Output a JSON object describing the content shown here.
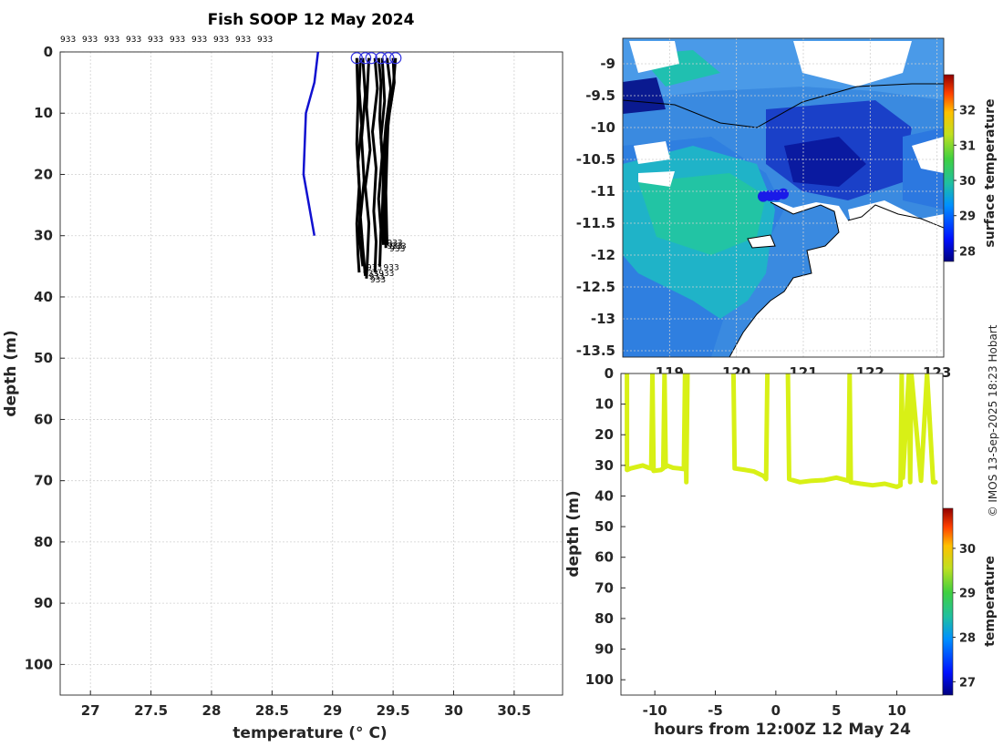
{
  "chart_data": [
    {
      "type": "line",
      "name": "depth profiles",
      "title": "Fish SOOP 12 May 2024",
      "xlabel": "temperature (° C)",
      "ylabel": "depth (m)",
      "xlim": [
        26.75,
        30.9
      ],
      "ylim": [
        105,
        0
      ],
      "xticks": [
        27,
        27.5,
        28,
        28.5,
        29,
        29.5,
        30,
        30.5
      ],
      "xtick_labels": [
        "27",
        "27.5",
        "28",
        "28.5",
        "29",
        "29.5",
        "30",
        "30.5"
      ],
      "yticks": [
        0,
        10,
        20,
        30,
        40,
        50,
        60,
        70,
        80,
        90,
        100
      ],
      "grid": true,
      "top_labels": [
        "933",
        "933",
        "933",
        "933",
        "933",
        "933",
        "933",
        "933",
        "933",
        "933"
      ],
      "end_label": "933",
      "series": [
        {
          "name": "blue",
          "color": "#1010d0",
          "x": [
            28.88,
            28.85,
            28.78,
            28.76,
            28.85
          ],
          "y": [
            0,
            5,
            10,
            20,
            30
          ]
        },
        {
          "name": "p1",
          "color": "#000000",
          "x": [
            29.2,
            29.21,
            29.2,
            29.22,
            29.2,
            29.21,
            29.22
          ],
          "y": [
            1,
            8,
            15,
            22,
            28,
            33,
            36
          ]
        },
        {
          "name": "p2",
          "color": "#000000",
          "x": [
            29.23,
            29.22,
            29.24,
            29.21,
            29.23,
            29.22,
            29.25
          ],
          "y": [
            1,
            6,
            12,
            18,
            25,
            30,
            35
          ]
        },
        {
          "name": "p3",
          "color": "#000000",
          "x": [
            29.25,
            29.27,
            29.24,
            29.26,
            29.23,
            29.25,
            29.27
          ],
          "y": [
            1,
            7,
            14,
            21,
            27,
            32,
            36.5
          ]
        },
        {
          "name": "p4",
          "color": "#000000",
          "x": [
            29.3,
            29.28,
            29.31,
            29.27,
            29.3,
            29.29,
            29.28
          ],
          "y": [
            1,
            9,
            16,
            22,
            28,
            33,
            37
          ]
        },
        {
          "name": "p5",
          "color": "#000000",
          "x": [
            29.35,
            29.37,
            29.33,
            29.36,
            29.34,
            29.36,
            29.35
          ],
          "y": [
            1,
            6,
            13,
            19,
            26,
            31,
            36
          ]
        },
        {
          "name": "p6",
          "color": "#000000",
          "x": [
            29.38,
            29.4,
            29.39,
            29.41,
            29.38,
            29.4,
            29.39
          ],
          "y": [
            1,
            5,
            11,
            17,
            24,
            29,
            35
          ]
        },
        {
          "name": "p7",
          "color": "#000000",
          "x": [
            29.41,
            29.43,
            29.4,
            29.42,
            29.41,
            29.42
          ],
          "y": [
            1,
            8,
            14,
            20,
            27,
            31.5
          ]
        },
        {
          "name": "p8",
          "color": "#000000",
          "x": [
            29.45,
            29.48,
            29.44,
            29.42,
            29.43,
            29.42
          ],
          "y": [
            1,
            6,
            12,
            17,
            24,
            31
          ]
        },
        {
          "name": "p9",
          "color": "#000000",
          "x": [
            29.5,
            29.51,
            29.47,
            29.44,
            29.43,
            29.44
          ],
          "y": [
            1,
            5,
            10,
            15,
            22,
            32
          ]
        },
        {
          "name": "p10",
          "color": "#000000",
          "x": [
            29.52,
            29.5,
            29.46,
            29.45,
            29.44,
            29.45
          ],
          "y": [
            1,
            6,
            11,
            16,
            23,
            31.5
          ]
        }
      ],
      "start_markers_x": [
        29.2,
        29.27,
        29.32,
        29.4,
        29.46,
        29.52
      ]
    },
    {
      "type": "heatmap",
      "name": "surface temperature map",
      "xticks": [
        119,
        120,
        121,
        122,
        123
      ],
      "xtick_labels": [
        "119",
        "120",
        "121",
        "122",
        "123"
      ],
      "xlim": [
        118.3,
        123.1
      ],
      "ylim": [
        -13.6,
        -8.6
      ],
      "yticks": [
        -9,
        -9.5,
        -10,
        -10.5,
        -11,
        -11.5,
        -12,
        -12.5,
        -13,
        -13.5
      ],
      "ytick_labels": [
        "-9",
        "-9.5",
        "-10",
        "-10.5",
        "-11",
        "-11.5",
        "-12",
        "-12.5",
        "-13",
        "-13.5"
      ],
      "colorbar_label": "surface temperature",
      "colorbar_range": [
        27.7,
        33.0
      ],
      "colorbar_ticks": [
        28,
        29,
        30,
        31,
        32
      ],
      "ship_track": {
        "lon": [
          120.4,
          120.5,
          120.6,
          120.7
        ],
        "lat": [
          -11.08,
          -11.07,
          -11.06,
          -11.04
        ]
      }
    },
    {
      "type": "scatter",
      "name": "depth vs time",
      "xlabel": "hours from 12:00Z 12 May 24",
      "ylabel": "depth (m)",
      "xlim": [
        -12.8,
        13.8
      ],
      "ylim": [
        105,
        0
      ],
      "xticks": [
        -10,
        -5,
        0,
        5,
        10
      ],
      "xtick_labels": [
        "-10",
        "-5",
        "0",
        "5",
        "10"
      ],
      "yticks": [
        0,
        10,
        20,
        30,
        40,
        50,
        60,
        70,
        80,
        90,
        100
      ],
      "colorbar_label": "temperature",
      "colorbar_range": [
        26.7,
        30.9
      ],
      "colorbar_ticks": [
        27,
        28,
        29,
        30
      ],
      "color": "#d8f016",
      "segments": [
        {
          "t": [
            -12.3,
            -12.3,
            -12.0,
            -11.0,
            -10.5,
            -10.3,
            -10.2,
            -10.1,
            -9.5,
            -9.3,
            -9.2,
            -9.1,
            -9.0,
            -8.5,
            -8.0,
            -7.6,
            -7.5,
            -7.4,
            -7.3
          ],
          "d": [
            0,
            31.5,
            31.0,
            30.0,
            30.8,
            31.0,
            0,
            31.8,
            31.5,
            31.0,
            0,
            30.5,
            30.0,
            30.8,
            31.0,
            31.2,
            0,
            35.5,
            0
          ]
        },
        {
          "t": [
            -3.5,
            -3.4,
            -2.5,
            -1.8,
            -1.0,
            -0.8,
            -0.7
          ],
          "d": [
            0,
            31.0,
            31.5,
            32.0,
            33.5,
            34.5,
            0
          ]
        },
        {
          "t": [
            1.0,
            1.1,
            2.0,
            3.0,
            4.0,
            5.0,
            6.0,
            6.1,
            6.2,
            7.0,
            8.0,
            9.0,
            10.0,
            10.3,
            10.4,
            10.5,
            11.0,
            11.1,
            11.2,
            12.0,
            12.5,
            13.0,
            13.2
          ],
          "d": [
            0,
            34.5,
            35.5,
            35.0,
            34.8,
            34.0,
            35.0,
            0,
            35.5,
            36.0,
            36.5,
            36.0,
            37.0,
            36.5,
            0,
            34.0,
            0,
            35.5,
            0,
            35.0,
            0,
            35.5,
            35.5
          ]
        }
      ]
    }
  ],
  "credit": "© IMOS 13-Sep-2025 18:23 Hobart"
}
